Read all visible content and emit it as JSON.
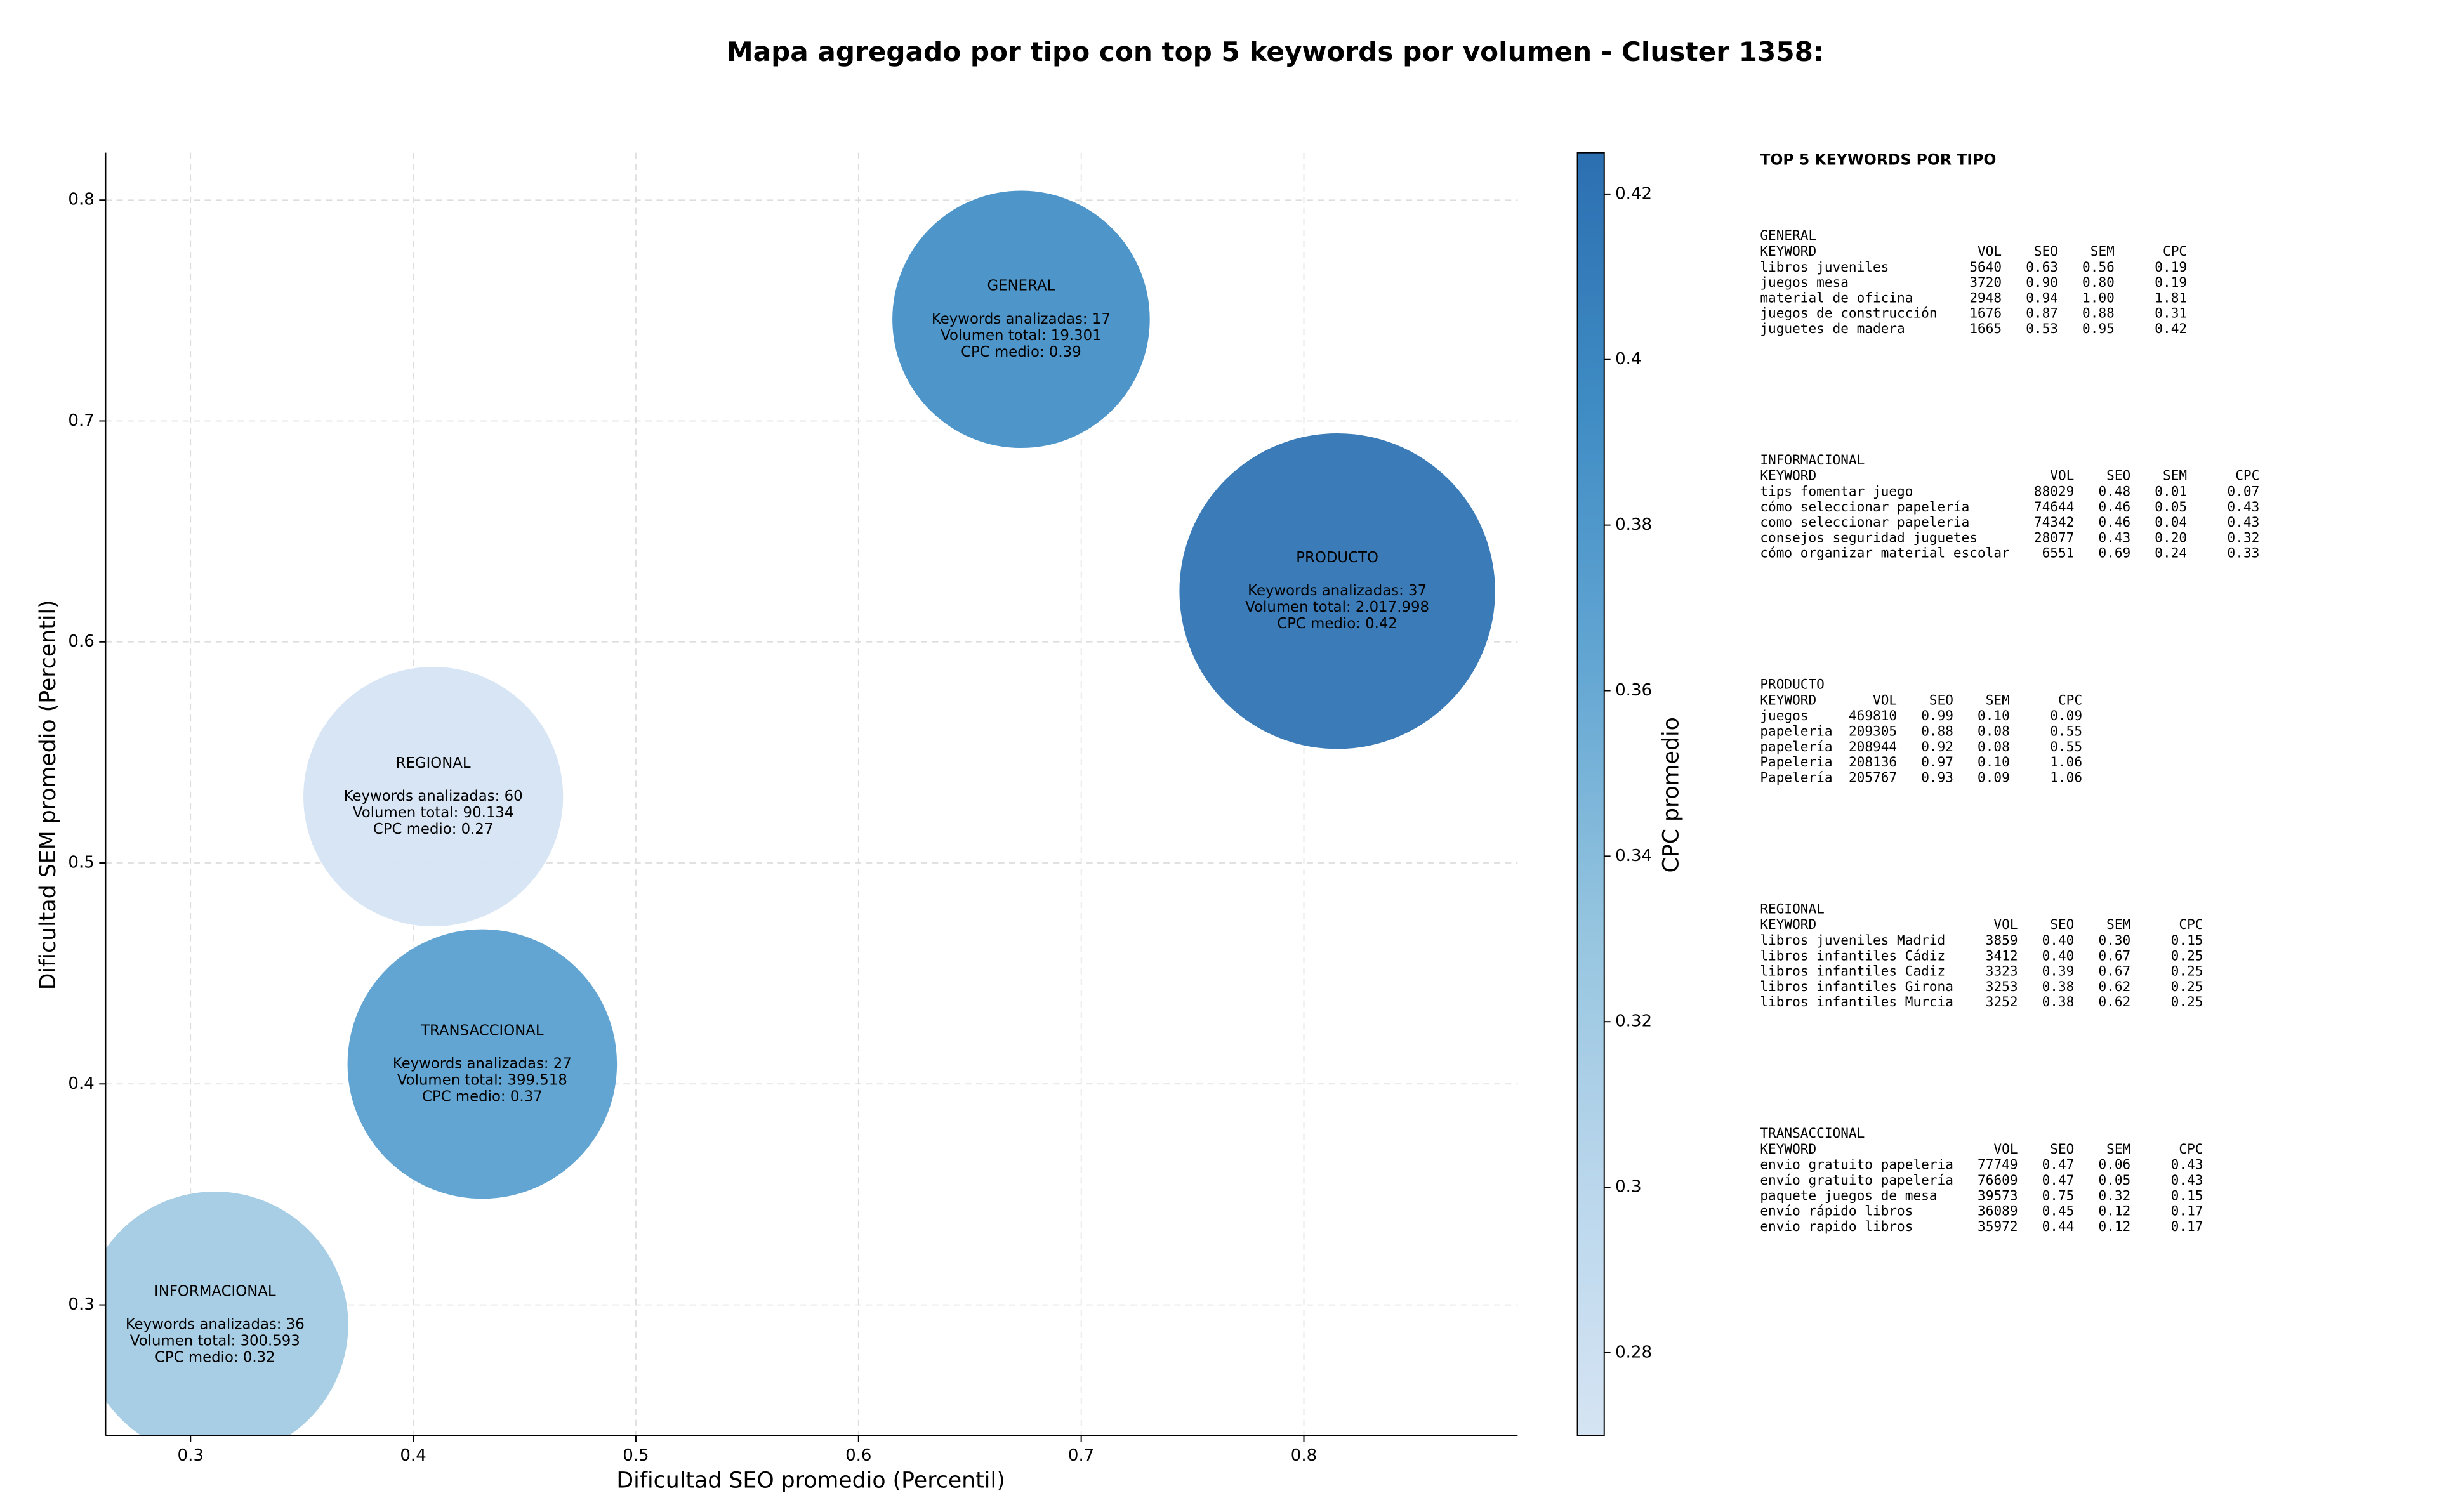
{
  "chart_data": {
    "type": "bubble",
    "title": "Mapa agregado por tipo con top 5 keywords por volumen - Cluster 1358:",
    "x_label": "Dificultad SEO promedio (Percentil)",
    "y_label": "Dificultad SEM promedio (Percentil)",
    "colorbar_label": "CPC promedio",
    "xlim": [
      0.2618,
      0.896
    ],
    "ylim": [
      0.2409,
      0.8214
    ],
    "xticks": [
      0.3,
      0.4,
      0.5,
      0.6,
      0.7,
      0.8
    ],
    "yticks": [
      0.3,
      0.4,
      0.5,
      0.6,
      0.7,
      0.8
    ],
    "clim": [
      0.27,
      0.425
    ],
    "cticks": [
      0.28,
      0.3,
      0.32,
      0.34,
      0.36,
      0.38,
      0.4,
      0.42
    ],
    "colormap": [
      "#d5e4f3",
      "#b9d6ec",
      "#94c4df",
      "#63a6d3",
      "#3f8cc4",
      "#2c6fb1"
    ],
    "grid": true,
    "bubbles": [
      {
        "name": "GENERAL",
        "x": 0.673,
        "y": 0.746,
        "volume": 19301,
        "cpc": 0.39,
        "lines": [
          "Keywords analizadas: 17",
          "Volumen total: 19.301",
          "CPC medio: 0.39"
        ]
      },
      {
        "name": "PRODUCTO",
        "x": 0.815,
        "y": 0.623,
        "volume": 2017998,
        "cpc": 0.42,
        "lines": [
          "Keywords analizadas: 37",
          "Volumen total: 2.017.998",
          "CPC medio: 0.42"
        ]
      },
      {
        "name": "REGIONAL",
        "x": 0.409,
        "y": 0.53,
        "volume": 90134,
        "cpc": 0.27,
        "lines": [
          "Keywords analizadas: 60",
          "Volumen total: 90.134",
          "CPC medio: 0.27"
        ]
      },
      {
        "name": "TRANSACCIONAL",
        "x": 0.431,
        "y": 0.409,
        "volume": 399518,
        "cpc": 0.37,
        "lines": [
          "Keywords analizadas: 27",
          "Volumen total: 399.518",
          "CPC medio: 0.37"
        ]
      },
      {
        "name": "INFORMACIONAL",
        "x": 0.311,
        "y": 0.291,
        "volume": 300593,
        "cpc": 0.32,
        "lines": [
          "Keywords analizadas: 36",
          "Volumen total: 300.593",
          "CPC medio: 0.32"
        ]
      }
    ]
  },
  "keyword_panel": {
    "title": "TOP 5 KEYWORDS POR TIPO",
    "sections": [
      {
        "name": "GENERAL",
        "columns": [
          "KEYWORD",
          "VOL",
          "SEO",
          "SEM",
          "CPC"
        ],
        "rows": [
          [
            "libros juveniles",
            "5640",
            "0.63",
            "0.56",
            "0.19"
          ],
          [
            "juegos mesa",
            "3720",
            "0.90",
            "0.80",
            "0.19"
          ],
          [
            "material de oficina",
            "2948",
            "0.94",
            "1.00",
            "1.81"
          ],
          [
            "juegos de construcción",
            "1676",
            "0.87",
            "0.88",
            "0.31"
          ],
          [
            "juguetes de madera",
            "1665",
            "0.53",
            "0.95",
            "0.42"
          ]
        ]
      },
      {
        "name": "INFORMACIONAL",
        "columns": [
          "KEYWORD",
          "VOL",
          "SEO",
          "SEM",
          "CPC"
        ],
        "rows": [
          [
            "tips fomentar juego",
            "88029",
            "0.48",
            "0.01",
            "0.07"
          ],
          [
            "cómo seleccionar papelería",
            "74644",
            "0.46",
            "0.05",
            "0.43"
          ],
          [
            "como seleccionar papeleria",
            "74342",
            "0.46",
            "0.04",
            "0.43"
          ],
          [
            "consejos seguridad juguetes",
            "28077",
            "0.43",
            "0.20",
            "0.32"
          ],
          [
            "cómo organizar material escolar",
            "6551",
            "0.69",
            "0.24",
            "0.33"
          ]
        ]
      },
      {
        "name": "PRODUCTO",
        "columns": [
          "KEYWORD",
          "VOL",
          "SEO",
          "SEM",
          "CPC"
        ],
        "rows": [
          [
            "juegos",
            "469810",
            "0.99",
            "0.10",
            "0.09"
          ],
          [
            "papeleria",
            "209305",
            "0.88",
            "0.08",
            "0.55"
          ],
          [
            "papelería",
            "208944",
            "0.92",
            "0.08",
            "0.55"
          ],
          [
            "Papeleria",
            "208136",
            "0.97",
            "0.10",
            "1.06"
          ],
          [
            "Papelería",
            "205767",
            "0.93",
            "0.09",
            "1.06"
          ]
        ]
      },
      {
        "name": "REGIONAL",
        "columns": [
          "KEYWORD",
          "VOL",
          "SEO",
          "SEM",
          "CPC"
        ],
        "rows": [
          [
            "libros juveniles Madrid",
            "3859",
            "0.40",
            "0.30",
            "0.15"
          ],
          [
            "libros infantiles Cádiz",
            "3412",
            "0.40",
            "0.67",
            "0.25"
          ],
          [
            "libros infantiles Cadiz",
            "3323",
            "0.39",
            "0.67",
            "0.25"
          ],
          [
            "libros infantiles Girona",
            "3253",
            "0.38",
            "0.62",
            "0.25"
          ],
          [
            "libros infantiles Murcia",
            "3252",
            "0.38",
            "0.62",
            "0.25"
          ]
        ]
      },
      {
        "name": "TRANSACCIONAL",
        "columns": [
          "KEYWORD",
          "VOL",
          "SEO",
          "SEM",
          "CPC"
        ],
        "rows": [
          [
            "envio gratuito papeleria",
            "77749",
            "0.47",
            "0.06",
            "0.43"
          ],
          [
            "envío gratuito papelería",
            "76609",
            "0.47",
            "0.05",
            "0.43"
          ],
          [
            "paquete juegos de mesa",
            "39573",
            "0.75",
            "0.32",
            "0.15"
          ],
          [
            "envío rápido libros",
            "36089",
            "0.45",
            "0.12",
            "0.17"
          ],
          [
            "envio rapido libros",
            "35972",
            "0.44",
            "0.12",
            "0.17"
          ]
        ]
      }
    ]
  }
}
